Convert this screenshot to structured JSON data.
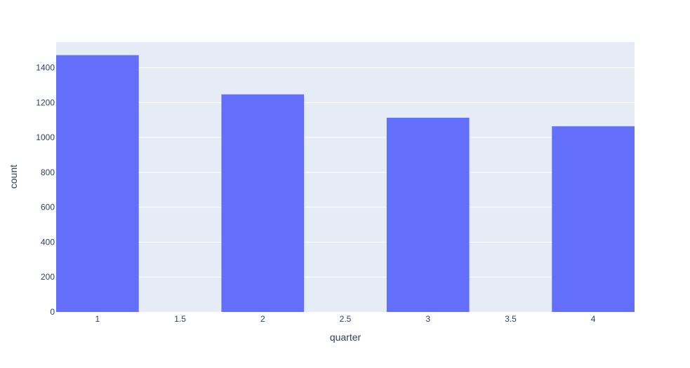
{
  "colors": {
    "plot_background": "#e5ecf6",
    "gridline": "#ffffff",
    "bar": "#636efa",
    "text": "#2a3f5f"
  },
  "chart_data": {
    "type": "bar",
    "x": [
      1,
      2,
      3,
      4
    ],
    "values": [
      1472,
      1247,
      1113,
      1064
    ],
    "xlabel": "quarter",
    "ylabel": "count",
    "xlim": [
      0.75,
      4.25
    ],
    "ylim": [
      0,
      1547
    ],
    "bar_width": 0.5,
    "x_ticks": [
      "1",
      "1.5",
      "2",
      "2.5",
      "3",
      "3.5",
      "4"
    ],
    "x_tick_values": [
      1,
      1.5,
      2,
      2.5,
      3,
      3.5,
      4
    ],
    "y_ticks": [
      "0",
      "200",
      "400",
      "600",
      "800",
      "1000",
      "1200",
      "1400"
    ],
    "y_tick_values": [
      0,
      200,
      400,
      600,
      800,
      1000,
      1200,
      1400
    ],
    "grid": true,
    "legend": "none"
  }
}
